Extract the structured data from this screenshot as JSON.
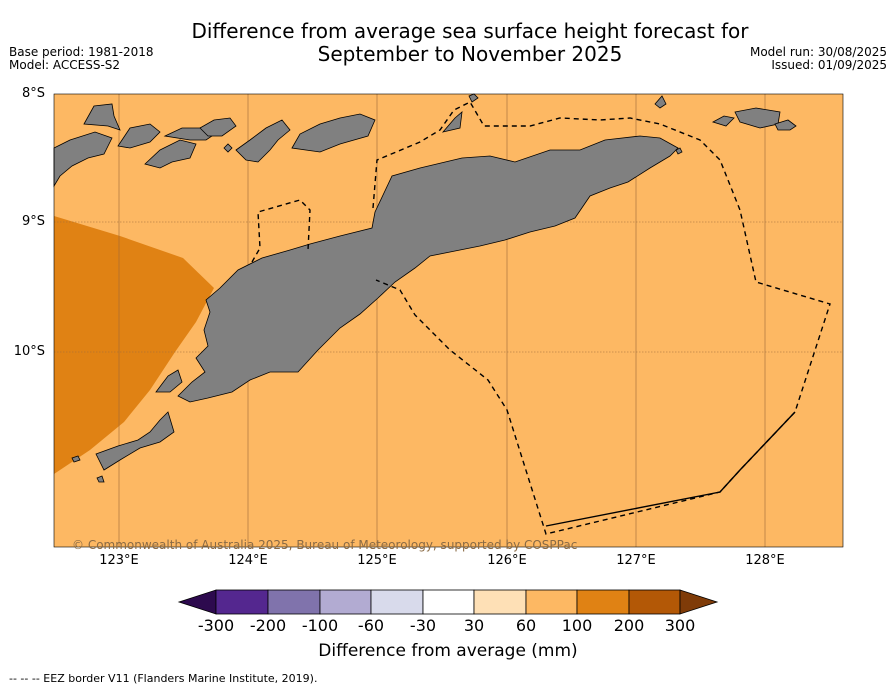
{
  "title_line1": "Difference from average sea surface height forecast for",
  "title_line2": "September to November 2025",
  "base_period": "Base period: 1981-2018",
  "model": "Model: ACCESS-S2",
  "model_run": "Model run: 30/08/2025",
  "issued": "Issued: 01/09/2025",
  "lat_labels": [
    "8°S",
    "9°S",
    "10°S"
  ],
  "lon_labels": [
    "123°E",
    "124°E",
    "125°E",
    "126°E",
    "127°E",
    "128°E"
  ],
  "copyright": "© Commonwealth of Australia 2025, Bureau of Meteorology, supported by COSPPac",
  "colorbar": {
    "title": "Difference from average (mm)",
    "ticks": [
      "-300",
      "-200",
      "-100",
      "-60",
      "-30",
      "30",
      "60",
      "100",
      "200",
      "300"
    ],
    "colors": [
      "#2d0a4e",
      "#54278f",
      "#8073ac",
      "#b2abd2",
      "#d8daeb",
      "#ffffff",
      "#fee0b6",
      "#fdb863",
      "#e08214",
      "#b35806",
      "#7f3b08"
    ]
  },
  "footnote": "--  --  -- EEZ border V11 (Flanders Marine Institute, 2019).",
  "map_colors": {
    "ocean": "#fdb863",
    "anomaly_high": "#e08214",
    "land": "#808080"
  }
}
